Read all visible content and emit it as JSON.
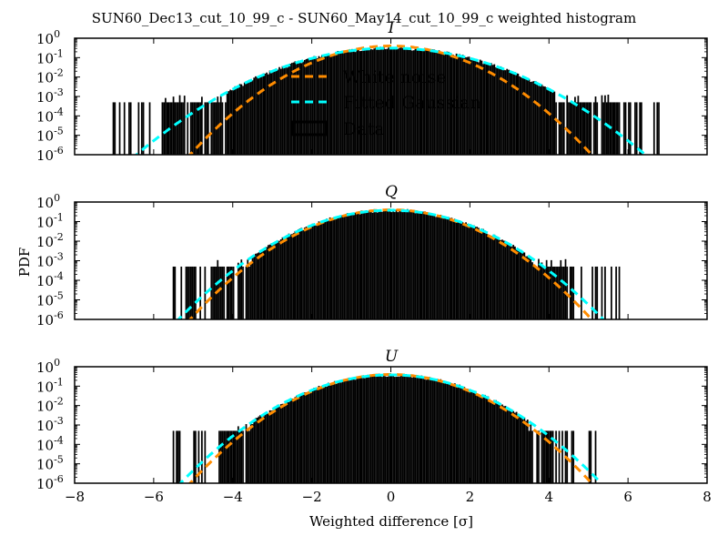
{
  "chart_data": {
    "type": "histogram",
    "title": "SUN60_Dec13_cut_10_99_c - SUN60_May14_cut_10_99_c weighted histogram",
    "xlabel": "Weighted difference [σ]",
    "ylabel": "PDF",
    "xlim": [
      -8,
      8
    ],
    "ylim": [
      1e-06,
      1
    ],
    "yscale": "log",
    "x_ticks": [
      -8,
      -6,
      -4,
      -2,
      0,
      2,
      4,
      6,
      8
    ],
    "x_tick_labels": [
      "−8",
      "−6",
      "−4",
      "−2",
      "0",
      "2",
      "4",
      "6",
      "8"
    ],
    "y_ticks": [
      1e-06,
      1e-05,
      0.0001,
      0.001,
      0.01,
      0.1,
      1
    ],
    "y_tick_exponents": [
      "-6",
      "-5",
      "-4",
      "-3",
      "-2",
      "-1",
      "0"
    ],
    "y_tick_base": "10",
    "legend": {
      "placement": "upper-center (first panel)",
      "entries": [
        {
          "label": "White noise",
          "style": "dashed",
          "color": "#ff8c00"
        },
        {
          "label": "Fitted Gaussian",
          "style": "dashed",
          "color": "#00ffff"
        },
        {
          "label": "Data",
          "style": "step-outline",
          "color": "#000000"
        }
      ]
    },
    "panels": [
      {
        "title": "I",
        "data_range": [
          -7.1,
          6.9
        ],
        "floor_level": 0.0005,
        "white_noise": {
          "mean": 0.0,
          "sigma": 1.0,
          "peak": 0.4
        },
        "fitted_gaussian": {
          "mean": 0.0,
          "sigma": 1.28,
          "peak": 0.31
        },
        "isolated_bins": [
          -7.0,
          -6.85,
          -6.6,
          5.95,
          6.2,
          6.35,
          6.9
        ]
      },
      {
        "title": "Q",
        "data_range": [
          -5.65,
          5.8
        ],
        "floor_level": 0.0005,
        "white_noise": {
          "mean": 0.0,
          "sigma": 1.0,
          "peak": 0.4
        },
        "fitted_gaussian": {
          "mean": 0.0,
          "sigma": 1.06,
          "peak": 0.38
        },
        "isolated_bins": [
          -5.65,
          -5.15,
          -5.0,
          4.6,
          5.2,
          5.35,
          5.8
        ]
      },
      {
        "title": "U",
        "data_range": [
          -5.5,
          5.2
        ],
        "floor_level": 0.0005,
        "white_noise": {
          "mean": 0.0,
          "sigma": 1.0,
          "peak": 0.4
        },
        "fitted_gaussian": {
          "mean": 0.0,
          "sigma": 1.05,
          "peak": 0.38
        },
        "isolated_bins": [
          -5.5,
          -5.35,
          -4.95,
          -4.85,
          4.6,
          5.05,
          5.2
        ]
      }
    ]
  },
  "colors": {
    "white_noise": "#ff8c00",
    "fitted_gaussian": "#00ffff",
    "data": "#000000",
    "axes": "#000000",
    "background": "#ffffff"
  }
}
